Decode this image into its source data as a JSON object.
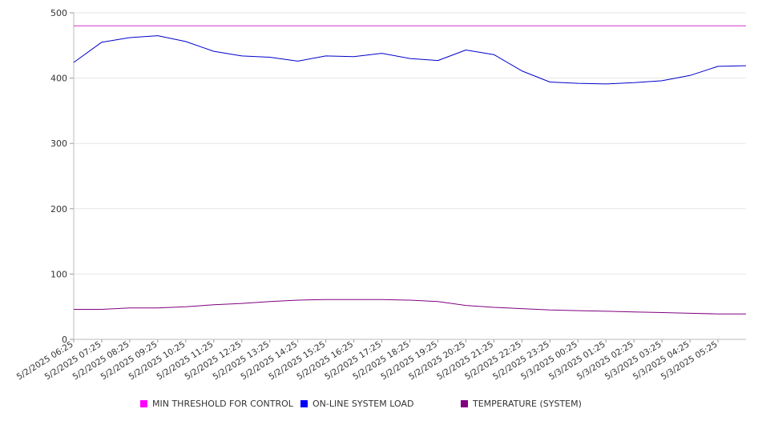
{
  "chart_data": {
    "type": "line",
    "title": "",
    "xlabel": "",
    "ylabel": "",
    "ylim": [
      0,
      500
    ],
    "yticks": [
      0,
      100,
      200,
      300,
      400,
      500
    ],
    "grid": true,
    "legend_position": "bottom",
    "x_tick_labels": [
      "5/2/2025 06:25",
      "5/2/2025 07:25",
      "5/2/2025 08:25",
      "5/2/2025 09:25",
      "5/2/2025 10:25",
      "5/2/2025 11:25",
      "5/2/2025 12:25",
      "5/2/2025 13:25",
      "5/2/2025 14:25",
      "5/2/2025 15:25",
      "5/2/2025 16:25",
      "5/2/2025 17:25",
      "5/2/2025 18:25",
      "5/2/2025 19:25",
      "5/2/2025 20:25",
      "5/2/2025 21:25",
      "5/2/2025 22:25",
      "5/2/2025 23:25",
      "5/3/2025 00:25",
      "5/3/2025 01:25",
      "5/3/2025 02:25",
      "5/3/2025 03:25",
      "5/3/2025 04:25",
      "5/3/2025 05:25"
    ],
    "series": [
      {
        "name": "MIN THRESHOLD FOR CONTROL",
        "color": "#cc33cc",
        "legend_color": "#ff00ff",
        "values": [
          480,
          480,
          480,
          480,
          480,
          480,
          480,
          480,
          480,
          480,
          480,
          480,
          480,
          480,
          480,
          480,
          480,
          480,
          480,
          480,
          480,
          480,
          480,
          480,
          480
        ]
      },
      {
        "name": "ON-LINE SYSTEM LOAD",
        "color": "#0000cc",
        "legend_color": "#0000ff",
        "values": [
          424,
          455,
          462,
          465,
          456,
          441,
          434,
          432,
          426,
          434,
          433,
          438,
          430,
          427,
          443,
          436,
          411,
          394,
          392,
          391,
          393,
          396,
          404,
          418,
          419
        ]
      },
      {
        "name": "TEMPERATURE (SYSTEM)",
        "color": "#800080",
        "legend_color": "#800080",
        "values": [
          46,
          46,
          48,
          48,
          50,
          53,
          55,
          58,
          60,
          61,
          61,
          61,
          60,
          58,
          52,
          49,
          47,
          45,
          44,
          43,
          42,
          41,
          40,
          39,
          39
        ]
      }
    ]
  }
}
